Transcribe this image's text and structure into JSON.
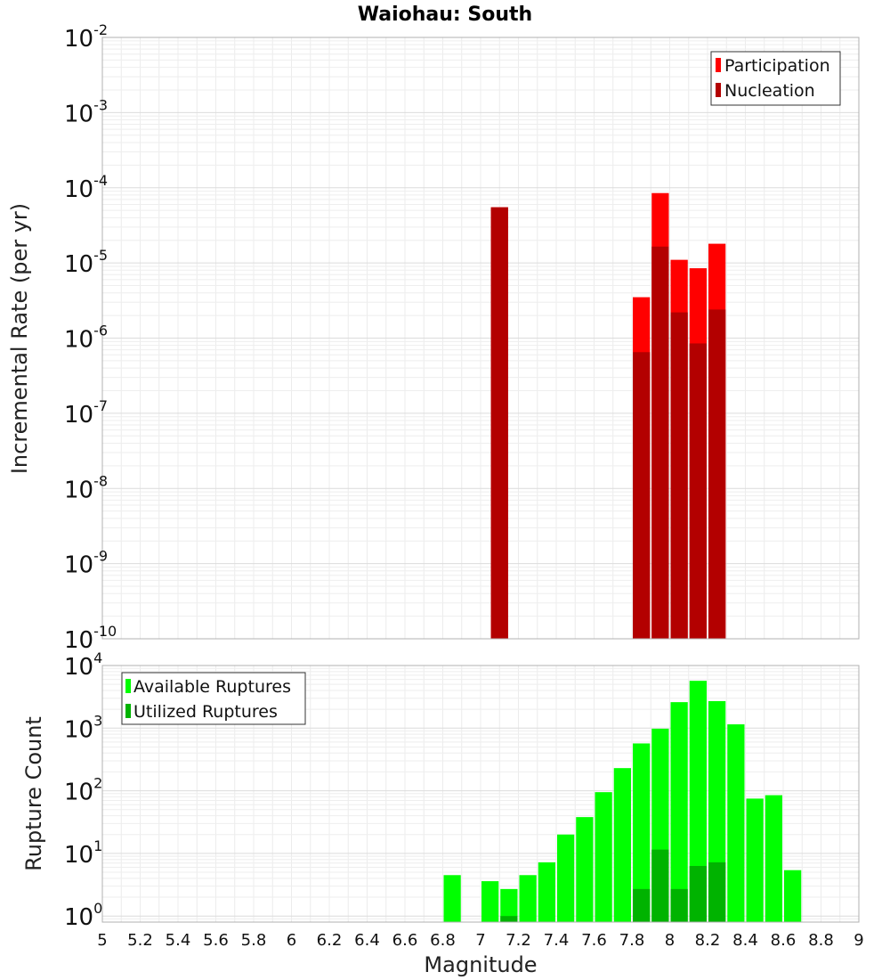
{
  "chart_data": [
    {
      "type": "bar",
      "title": "Waiohau: South",
      "ylabel": "Incremental Rate (per yr)",
      "xlabel": "",
      "y_scale": "log",
      "xlim": [
        5,
        9
      ],
      "ylim": [
        1e-10,
        0.01
      ],
      "y_ticks": [
        {
          "base": "10",
          "exp": "-10",
          "value": 1e-10
        },
        {
          "base": "10",
          "exp": "-9",
          "value": 1e-09
        },
        {
          "base": "10",
          "exp": "-8",
          "value": 1e-08
        },
        {
          "base": "10",
          "exp": "-7",
          "value": 1e-07
        },
        {
          "base": "10",
          "exp": "-6",
          "value": 1e-06
        },
        {
          "base": "10",
          "exp": "-5",
          "value": 1e-05
        },
        {
          "base": "10",
          "exp": "-4",
          "value": 0.0001
        },
        {
          "base": "10",
          "exp": "-3",
          "value": 0.001
        },
        {
          "base": "10",
          "exp": "-2",
          "value": 0.01
        }
      ],
      "bin_width": 0.1,
      "grid": true,
      "legend_position": "top-right",
      "series": [
        {
          "name": "Participation",
          "color": "#ff0000",
          "x": [
            7.1,
            7.85,
            7.95,
            8.05,
            8.15,
            8.25
          ],
          "values": [
            5.5e-05,
            3.5e-06,
            8.5e-05,
            1.1e-05,
            8.5e-06,
            1.8e-05
          ]
        },
        {
          "name": "Nucleation",
          "color": "#b30000",
          "x": [
            7.1,
            7.85,
            7.95,
            8.05,
            8.15,
            8.25
          ],
          "values": [
            5.5e-05,
            6.5e-07,
            1.65e-05,
            2.2e-06,
            8.5e-07,
            2.4e-06
          ]
        }
      ]
    },
    {
      "type": "bar",
      "title": "",
      "ylabel": "Rupture Count",
      "xlabel": "Magnitude",
      "y_scale": "log",
      "xlim": [
        5,
        9
      ],
      "ylim": [
        0.8,
        10000.0
      ],
      "y_ticks": [
        {
          "base": "10",
          "exp": "0",
          "value": 1
        },
        {
          "base": "10",
          "exp": "1",
          "value": 10
        },
        {
          "base": "10",
          "exp": "2",
          "value": 100
        },
        {
          "base": "10",
          "exp": "3",
          "value": 1000
        },
        {
          "base": "10",
          "exp": "4",
          "value": 10000
        }
      ],
      "x_ticks": [
        "5",
        "5.2",
        "5.4",
        "5.6",
        "5.8",
        "6",
        "6.2",
        "6.4",
        "6.6",
        "6.8",
        "7",
        "7.2",
        "7.4",
        "7.6",
        "7.8",
        "8",
        "8.2",
        "8.4",
        "8.6",
        "8.8",
        "9"
      ],
      "bin_width": 0.1,
      "grid": true,
      "legend_position": "top-left",
      "series": [
        {
          "name": "Available Ruptures",
          "color": "#00ff00",
          "x": [
            6.85,
            7.05,
            7.15,
            7.25,
            7.35,
            7.45,
            7.55,
            7.65,
            7.75,
            7.85,
            7.95,
            8.05,
            8.15,
            8.25,
            8.35,
            8.45,
            8.55,
            8.65
          ],
          "values": [
            4.5,
            3.6,
            2.7,
            4.5,
            7.2,
            20,
            38,
            95,
            230,
            570,
            980,
            2600,
            5700,
            2700,
            1150,
            75,
            85,
            5.4
          ]
        },
        {
          "name": "Utilized Ruptures",
          "color": "#00b300",
          "x": [
            7.15,
            7.85,
            7.95,
            8.05,
            8.15,
            8.25
          ],
          "values": [
            1,
            2.7,
            11.5,
            2.7,
            6.3,
            7.2
          ]
        }
      ]
    }
  ]
}
